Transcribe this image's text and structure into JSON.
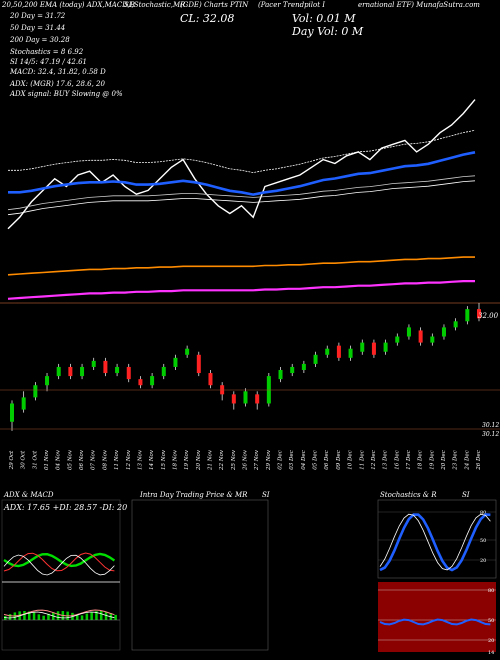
{
  "header": {
    "ema_line": "20,50,200 EMA (today) ADX,MACD,B",
    "si_line": "SI,Stochastic,MR",
    "si_line2": "(GDE) Charts PTIN",
    "fund_name": "(Pacer Trendpilot I",
    "fund_name2": "ernational ETF) MunafaSutra.com",
    "cl_label": "CL: 32.08",
    "vol_today": "Vol: 0.01 M",
    "vol_day": "Day Vol: 0  M",
    "ema20": "20   Day = 31.72",
    "ema50": "50   Day = 31.44",
    "ema200": "200  Day = 30.28",
    "stoch": "Stochastics = 8             6.92",
    "si": "SI 14/5: 47.19 / 42.61",
    "macd": "MACD: 32.4, 31.82, 0.58  D",
    "adx": "ADX:                   (MGR) 17.6,  28.6,  20",
    "adx_signal": "ADX  signal:                    BUY Slowing @ 0%"
  },
  "price_axis": {
    "right_top": "32.00",
    "right_low1": "30.12",
    "right_low2": "30.12"
  },
  "dates": [
    "29 Oct",
    "30 Oct",
    "31 Oct",
    "01 Nov",
    "04 Nov",
    "05 Nov",
    "06 Nov",
    "07 Nov",
    "08 Nov",
    "11 Nov",
    "12 Nov",
    "13 Nov",
    "14 Nov",
    "15 Nov",
    "18 Nov",
    "19 Nov",
    "20 Nov",
    "21 Nov",
    "22 Nov",
    "25 Nov",
    "26 Nov",
    "27 Nov",
    "29 Nov",
    "02 Dec",
    "03 Dec",
    "04 Dec",
    "05 Dec",
    "06 Dec",
    "09 Dec",
    "10 Dec",
    "11 Dec",
    "12 Dec",
    "13 Dec",
    "16 Dec",
    "17 Dec",
    "18 Dec",
    "19 Dec",
    "20 Dec",
    "23 Dec",
    "24 Dec",
    "26 Dec"
  ],
  "panels": {
    "adx_title": "ADX  & MACD",
    "adx_values": "ADX: 17.65 +DI: 28.57 -DI: 20",
    "intra_title": "Intra  Day Trading Price  & MR",
    "si_title": "SI",
    "stoch_title": "Stochastics & R",
    "stoch_si": "SI",
    "stoch_top_labels": [
      "80",
      "50",
      "20"
    ],
    "rsi_labels": [
      "80",
      "50",
      "20"
    ],
    "rsi_right": "14"
  },
  "colors": {
    "ema20": "#1f5fff",
    "ema50": "#ffffff",
    "ema200": "#ff8c00",
    "magenta": "#ff33ff",
    "up": "#00cc00",
    "down": "#ff2222",
    "rsi_bg": "#8b0000"
  },
  "chart_data": {
    "type": "line",
    "title": "",
    "candles_close": [
      30.4,
      30.55,
      30.75,
      30.9,
      31.05,
      30.95,
      31.1,
      31.15,
      31.0,
      31.1,
      30.95,
      30.85,
      30.9,
      31.05,
      31.2,
      31.3,
      31.05,
      30.85,
      30.7,
      30.6,
      30.7,
      30.55,
      30.95,
      31.0,
      31.05,
      31.1,
      31.2,
      31.3,
      31.25,
      31.35,
      31.4,
      31.3,
      31.45,
      31.5,
      31.55,
      31.4,
      31.5,
      31.65,
      31.75,
      31.9,
      32.08
    ],
    "ema20": [
      31.2,
      31.2,
      31.22,
      31.25,
      31.28,
      31.3,
      31.32,
      31.33,
      31.33,
      31.34,
      31.33,
      31.3,
      31.3,
      31.31,
      31.33,
      31.35,
      31.33,
      31.3,
      31.26,
      31.22,
      31.2,
      31.17,
      31.2,
      31.22,
      31.25,
      31.28,
      31.32,
      31.36,
      31.38,
      31.41,
      31.44,
      31.45,
      31.48,
      31.51,
      31.54,
      31.55,
      31.57,
      31.61,
      31.65,
      31.69,
      31.72
    ],
    "ema50": [
      31.0,
      31.02,
      31.05,
      31.08,
      31.1,
      31.12,
      31.14,
      31.16,
      31.17,
      31.18,
      31.18,
      31.18,
      31.18,
      31.19,
      31.2,
      31.21,
      31.21,
      31.2,
      31.19,
      31.18,
      31.17,
      31.16,
      31.17,
      31.18,
      31.19,
      31.2,
      31.22,
      31.24,
      31.25,
      31.27,
      31.29,
      31.3,
      31.32,
      31.34,
      31.35,
      31.36,
      31.37,
      31.39,
      31.41,
      31.43,
      31.44
    ],
    "ema200": [
      30.05,
      30.06,
      30.07,
      30.08,
      30.09,
      30.1,
      30.11,
      30.12,
      30.12,
      30.13,
      30.13,
      30.14,
      30.14,
      30.15,
      30.15,
      30.16,
      30.16,
      30.16,
      30.16,
      30.16,
      30.16,
      30.16,
      30.17,
      30.17,
      30.18,
      30.18,
      30.19,
      30.2,
      30.2,
      30.21,
      30.22,
      30.22,
      30.23,
      30.24,
      30.25,
      30.25,
      30.26,
      30.26,
      30.27,
      30.28,
      30.28
    ],
    "candles": [
      [
        30.2,
        30.5,
        30.05,
        30.55
      ],
      [
        30.4,
        30.6,
        30.35,
        30.7
      ],
      [
        30.6,
        30.8,
        30.55,
        30.85
      ],
      [
        30.8,
        30.95,
        30.7,
        31.0
      ],
      [
        30.95,
        31.1,
        30.9,
        31.15
      ],
      [
        31.1,
        30.95,
        30.9,
        31.15
      ],
      [
        30.95,
        31.1,
        30.9,
        31.15
      ],
      [
        31.1,
        31.2,
        31.05,
        31.25
      ],
      [
        31.2,
        31.0,
        30.95,
        31.25
      ],
      [
        31.0,
        31.1,
        30.95,
        31.15
      ],
      [
        31.1,
        30.9,
        30.85,
        31.15
      ],
      [
        30.9,
        30.8,
        30.75,
        30.95
      ],
      [
        30.8,
        30.95,
        30.75,
        31.0
      ],
      [
        30.95,
        31.1,
        30.9,
        31.15
      ],
      [
        31.1,
        31.25,
        31.05,
        31.3
      ],
      [
        31.3,
        31.4,
        31.25,
        31.45
      ],
      [
        31.3,
        31.0,
        30.95,
        31.35
      ],
      [
        31.0,
        30.8,
        30.75,
        31.05
      ],
      [
        30.8,
        30.65,
        30.55,
        30.85
      ],
      [
        30.65,
        30.5,
        30.4,
        30.7
      ],
      [
        30.5,
        30.7,
        30.45,
        30.75
      ],
      [
        30.65,
        30.5,
        30.4,
        30.7
      ],
      [
        30.5,
        30.95,
        30.45,
        31.0
      ],
      [
        30.9,
        31.05,
        30.85,
        31.1
      ],
      [
        31.0,
        31.1,
        30.95,
        31.15
      ],
      [
        31.05,
        31.15,
        31.0,
        31.2
      ],
      [
        31.15,
        31.3,
        31.1,
        31.35
      ],
      [
        31.3,
        31.4,
        31.25,
        31.45
      ],
      [
        31.45,
        31.25,
        31.2,
        31.5
      ],
      [
        31.25,
        31.4,
        31.2,
        31.45
      ],
      [
        31.35,
        31.5,
        31.3,
        31.55
      ],
      [
        31.5,
        31.3,
        31.25,
        31.55
      ],
      [
        31.35,
        31.5,
        31.3,
        31.55
      ],
      [
        31.5,
        31.6,
        31.45,
        31.65
      ],
      [
        31.6,
        31.75,
        31.55,
        31.8
      ],
      [
        31.7,
        31.5,
        31.45,
        31.75
      ],
      [
        31.5,
        31.6,
        31.45,
        31.65
      ],
      [
        31.6,
        31.75,
        31.55,
        31.8
      ],
      [
        31.75,
        31.85,
        31.7,
        31.9
      ],
      [
        31.85,
        32.05,
        31.8,
        32.1
      ],
      [
        32.05,
        31.9,
        31.85,
        32.15
      ]
    ],
    "ylim": [
      29.9,
      32.2
    ]
  }
}
